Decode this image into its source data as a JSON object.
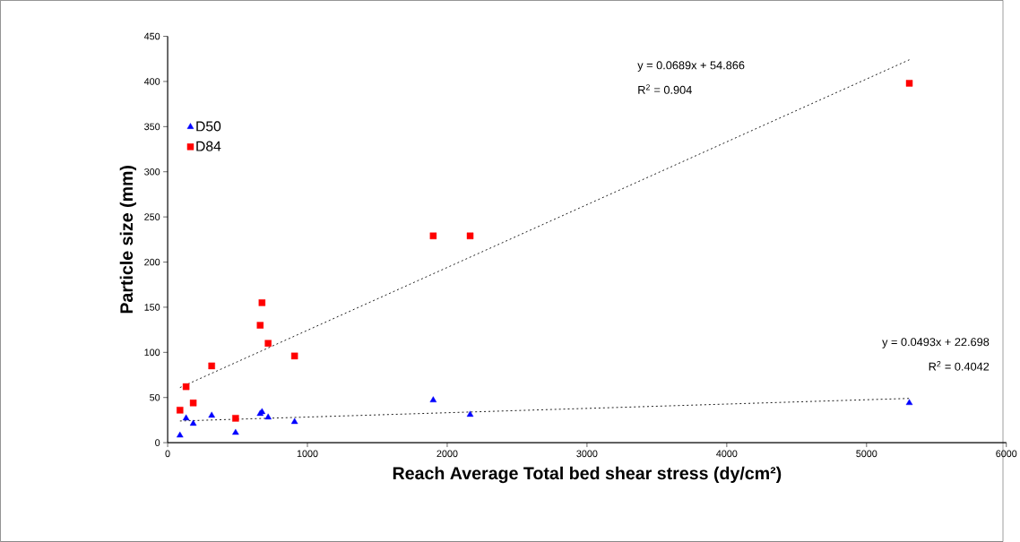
{
  "chart_data": {
    "type": "scatter",
    "xlabel": "Reach Average Total bed shear stress (dy/cm²)",
    "ylabel": "Particle size (mm)",
    "xlim": [
      0,
      6000
    ],
    "ylim": [
      0,
      450
    ],
    "xticks": [
      0,
      1000,
      2000,
      3000,
      4000,
      5000,
      6000
    ],
    "yticks": [
      0,
      50,
      100,
      150,
      200,
      250,
      300,
      350,
      400,
      450
    ],
    "grid": false,
    "legend": "top left",
    "series": [
      {
        "name": "D50",
        "color": "#0000ff",
        "marker": "triangle",
        "x": [
          88,
          132,
          183,
          315,
          486,
          662,
          675,
          719,
          908,
          1900,
          2164,
          5306
        ],
        "values": [
          8,
          27,
          21,
          30,
          11,
          32,
          34,
          28,
          23,
          47,
          31,
          44
        ]
      },
      {
        "name": "D84",
        "color": "#ff0000",
        "marker": "square",
        "x": [
          88,
          132,
          183,
          315,
          486,
          662,
          675,
          719,
          908,
          1900,
          2164,
          5306
        ],
        "values": [
          36,
          62,
          44,
          85,
          27,
          130,
          155,
          110,
          96,
          229,
          229,
          398
        ]
      },
      {
        "type": "line",
        "color": "#000000",
        "line_style": "dotted",
        "marker": "none",
        "x": [
          88,
          5306
        ],
        "values": [
          61,
          424
        ]
      },
      {
        "type": "line",
        "color": "#000000",
        "line_style": "dotted",
        "marker": "none",
        "x": [
          88,
          5306
        ],
        "values": [
          24,
          49
        ]
      }
    ],
    "annotations": [
      "y = 0.0689x + 54.866",
      "R$^{2}$ = 0.904",
      "y = 0.0493x + 22.698",
      "R$^{2}$ = 0.4042"
    ]
  }
}
